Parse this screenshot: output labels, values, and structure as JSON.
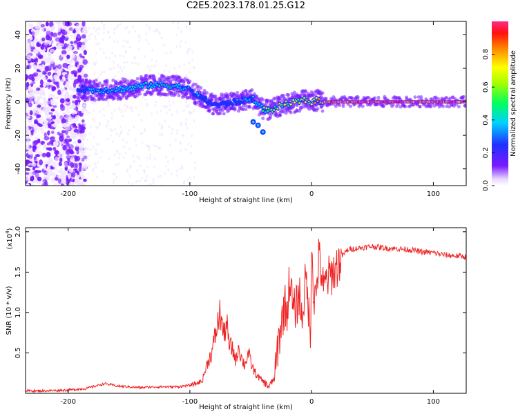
{
  "page_title": "C2E5.2023.178.01.25.G12",
  "chart_data": [
    {
      "type": "heatmap",
      "xlabel": "Height of straight line (km)",
      "ylabel": "Frequency (Hz)",
      "xlim": [
        -235,
        127
      ],
      "ylim": [
        -50,
        48
      ],
      "x_ticks": [
        -200,
        -100,
        0,
        100
      ],
      "y_ticks": [
        -40,
        -20,
        0,
        20,
        40
      ],
      "colormap": "rainbow (purple to red)",
      "grid": false,
      "ridge": {
        "x": [
          -192,
          -180,
          -165,
          -150,
          -135,
          -120,
          -108,
          -100,
          -92,
          -85,
          -78,
          -70,
          -62,
          -55,
          -48,
          -42,
          -38,
          -33,
          -28,
          -20,
          -12,
          -5,
          0,
          5,
          10,
          20,
          40,
          60,
          80,
          100,
          127
        ],
        "y": [
          8,
          7,
          7,
          8,
          10,
          10,
          9,
          7,
          3,
          0,
          -2,
          -1,
          0,
          1,
          2,
          -3,
          -5,
          -5,
          -3,
          -1,
          0,
          1,
          0,
          1,
          0,
          0,
          0,
          0,
          0,
          0,
          0
        ],
        "amplitude": [
          0.3,
          0.4,
          0.45,
          0.45,
          0.5,
          0.5,
          0.45,
          0.4,
          0.35,
          0.3,
          0.3,
          0.35,
          0.35,
          0.4,
          0.4,
          0.5,
          0.6,
          0.6,
          0.65,
          0.7,
          0.75,
          0.8,
          0.85,
          0.9,
          0.95,
          1.0,
          1.0,
          1.0,
          1.0,
          1.0,
          1.0
        ]
      },
      "side_branch": {
        "x": [
          -48,
          -44,
          -40
        ],
        "y": [
          -12,
          -14,
          -18
        ]
      },
      "colorbar": {
        "label": "Normalized spectral amplitude",
        "range": [
          0,
          1
        ],
        "ticks": [
          "0.0",
          "0.2",
          "0.4",
          "0.6",
          "0.8"
        ]
      }
    },
    {
      "type": "line",
      "xlabel": "Height of straight line (km)",
      "ylabel": "SNR (10 * v/v)",
      "y_multiplier": "(x10",
      "y_multiplier_exp": "4",
      "xlim": [
        -235,
        127
      ],
      "ylim": [
        0,
        2.05
      ],
      "x_ticks": [
        -200,
        -100,
        0,
        100
      ],
      "y_ticks": [
        "0.5",
        "1.0",
        "1.5",
        "2.0"
      ],
      "grid": false,
      "series": [
        {
          "color": "#ee2222",
          "x": [
            -235,
            -220,
            -200,
            -185,
            -175,
            -170,
            -160,
            -150,
            -140,
            -130,
            -120,
            -110,
            -100,
            -95,
            -90,
            -88,
            -85,
            -82,
            -78,
            -75,
            -72,
            -70,
            -68,
            -65,
            -62,
            -60,
            -58,
            -55,
            -52,
            -50,
            -48,
            -45,
            -40,
            -35,
            -30,
            -28,
            -25,
            -22,
            -20,
            -18,
            -15,
            -12,
            -10,
            -8,
            -5,
            -3,
            -1,
            0,
            2,
            4,
            6,
            8,
            10,
            12,
            15,
            20,
            25,
            30,
            40,
            50,
            60,
            70,
            80,
            90,
            100,
            110,
            120,
            127
          ],
          "y": [
            0.03,
            0.03,
            0.04,
            0.06,
            0.1,
            0.12,
            0.09,
            0.08,
            0.07,
            0.08,
            0.08,
            0.08,
            0.1,
            0.12,
            0.15,
            0.25,
            0.4,
            0.5,
            0.8,
            1.0,
            0.7,
            0.9,
            0.6,
            0.55,
            0.4,
            0.6,
            0.45,
            0.35,
            0.5,
            0.38,
            0.3,
            0.22,
            0.15,
            0.08,
            0.2,
            0.55,
            0.85,
            1.1,
            1.0,
            1.45,
            1.0,
            1.1,
            1.25,
            0.9,
            1.4,
            1.2,
            0.6,
            2.0,
            1.1,
            1.3,
            1.7,
            1.5,
            1.25,
            1.4,
            1.45,
            1.55,
            1.7,
            1.78,
            1.8,
            1.82,
            1.8,
            1.79,
            1.78,
            1.75,
            1.74,
            1.71,
            1.7,
            1.69
          ]
        }
      ]
    }
  ]
}
